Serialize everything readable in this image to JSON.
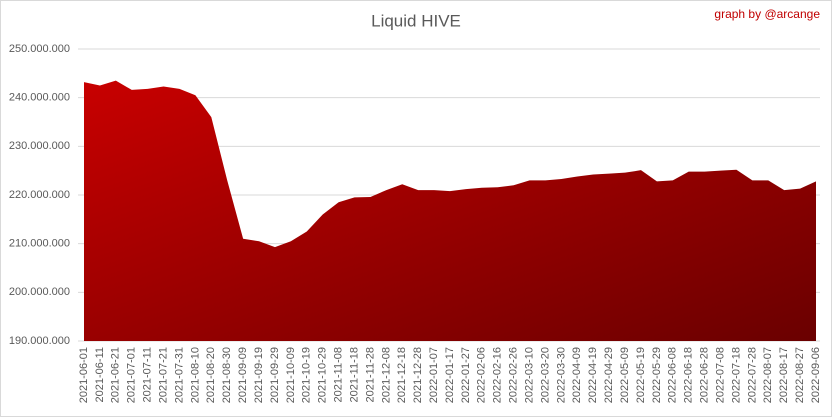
{
  "chart_data": {
    "type": "area",
    "title": "Liquid HIVE",
    "annotation": "graph by @arcange",
    "categories": [
      "2021-06-01",
      "2021-06-11",
      "2021-06-21",
      "2021-07-01",
      "2021-07-11",
      "2021-07-21",
      "2021-07-31",
      "2021-08-10",
      "2021-08-20",
      "2021-08-30",
      "2021-09-09",
      "2021-09-19",
      "2021-09-29",
      "2021-10-09",
      "2021-10-19",
      "2021-10-29",
      "2021-11-08",
      "2021-11-18",
      "2021-11-28",
      "2021-12-08",
      "2021-12-18",
      "2021-12-28",
      "2022-01-07",
      "2022-01-17",
      "2022-01-27",
      "2022-02-06",
      "2022-02-16",
      "2022-02-26",
      "2022-03-10",
      "2022-03-20",
      "2022-03-30",
      "2022-04-09",
      "2022-04-19",
      "2022-04-29",
      "2022-05-09",
      "2022-05-19",
      "2022-05-29",
      "2022-06-08",
      "2022-06-18",
      "2022-06-28",
      "2022-07-08",
      "2022-07-18",
      "2022-07-28",
      "2022-08-07",
      "2022-08-17",
      "2022-08-27",
      "2022-09-06"
    ],
    "values": [
      243200000,
      242500000,
      243500000,
      241600000,
      241800000,
      242300000,
      241800000,
      240500000,
      236000000,
      223000000,
      211000000,
      210500000,
      209300000,
      210500000,
      212500000,
      216000000,
      218500000,
      219500000,
      219600000,
      221000000,
      222200000,
      221000000,
      221000000,
      220800000,
      221200000,
      221500000,
      221600000,
      222000000,
      223000000,
      223000000,
      223300000,
      223800000,
      224200000,
      224400000,
      224600000,
      225100000,
      222800000,
      223000000,
      224800000,
      224800000,
      225000000,
      225200000,
      223000000,
      223000000,
      221000000,
      221300000,
      222800000
    ],
    "color": "#c00000",
    "ylim": [
      190000000,
      250000000
    ],
    "yticks": [
      {
        "value": 190000000,
        "label": "190.000.000"
      },
      {
        "value": 200000000,
        "label": "200.000.000"
      },
      {
        "value": 210000000,
        "label": "210.000.000"
      },
      {
        "value": 220000000,
        "label": "220.000.000"
      },
      {
        "value": 230000000,
        "label": "230.000.000"
      },
      {
        "value": 240000000,
        "label": "240.000.000"
      },
      {
        "value": 250000000,
        "label": "250.000.000"
      }
    ],
    "grid": true
  }
}
